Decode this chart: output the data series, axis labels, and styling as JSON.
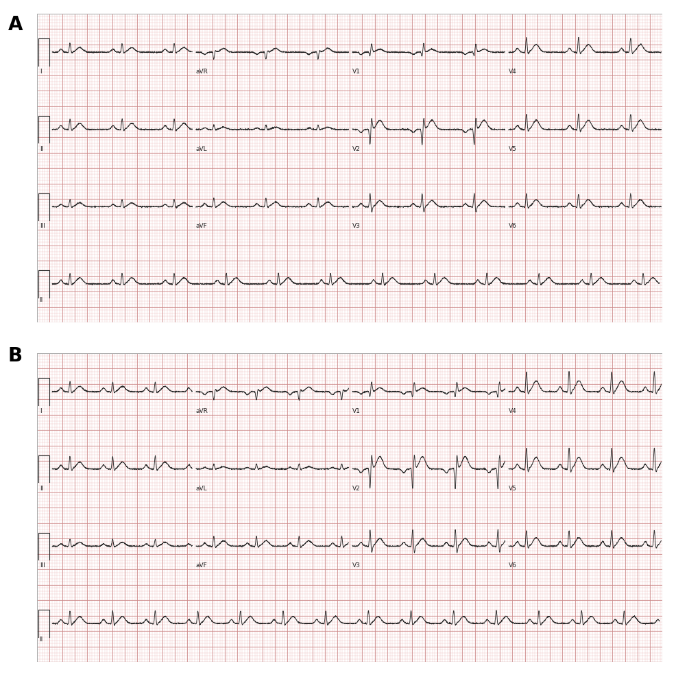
{
  "panel_A_label": "A",
  "panel_B_label": "B",
  "bg_color": "#fce8e8",
  "outer_bg": "#ffffff",
  "grid_minor_color": "#e8aaaa",
  "grid_major_color": "#cc8888",
  "ecg_color": "#2a2a2a",
  "label_color": "#222222",
  "label_fontsize": 6.5,
  "panel_A_leads": {
    "row0": [
      {
        "label": "I",
        "hr": 72,
        "amp": 0.12,
        "p_amp": 0.04,
        "t_amp": 0.06,
        "s_amp": 0.02,
        "q_amp": 0.01,
        "invert": false
      },
      {
        "label": "aVR",
        "hr": 72,
        "amp": 0.1,
        "p_amp": 0.03,
        "t_amp": -0.05,
        "s_amp": 0.03,
        "q_amp": 0.01,
        "invert": true
      },
      {
        "label": "V1",
        "hr": 72,
        "amp": 0.08,
        "p_amp": 0.03,
        "t_amp": -0.04,
        "s_amp": 0.12,
        "q_amp": 0.01,
        "invert": true
      },
      {
        "label": "V4",
        "hr": 72,
        "amp": 0.2,
        "p_amp": 0.05,
        "t_amp": 0.1,
        "s_amp": 0.04,
        "q_amp": 0.02,
        "invert": false
      }
    ],
    "row1": [
      {
        "label": "II",
        "hr": 72,
        "amp": 0.15,
        "p_amp": 0.05,
        "t_amp": 0.08,
        "s_amp": 0.03,
        "q_amp": 0.02,
        "invert": false
      },
      {
        "label": "aVL",
        "hr": 72,
        "amp": 0.06,
        "p_amp": 0.02,
        "t_amp": 0.03,
        "s_amp": 0.01,
        "q_amp": 0.01,
        "invert": false
      },
      {
        "label": "V2",
        "hr": 72,
        "amp": 0.25,
        "p_amp": 0.04,
        "t_amp": -0.12,
        "s_amp": 0.18,
        "q_amp": 0.02,
        "invert": true
      },
      {
        "label": "V5",
        "hr": 72,
        "amp": 0.22,
        "p_amp": 0.05,
        "t_amp": 0.12,
        "s_amp": 0.05,
        "q_amp": 0.02,
        "invert": false
      }
    ],
    "row2": [
      {
        "label": "III",
        "hr": 72,
        "amp": 0.1,
        "p_amp": 0.03,
        "t_amp": 0.05,
        "s_amp": 0.02,
        "q_amp": 0.01,
        "invert": false
      },
      {
        "label": "aVF",
        "hr": 72,
        "amp": 0.12,
        "p_amp": 0.04,
        "t_amp": 0.06,
        "s_amp": 0.02,
        "q_amp": 0.01,
        "invert": false
      },
      {
        "label": "V3",
        "hr": 72,
        "amp": 0.2,
        "p_amp": 0.04,
        "t_amp": 0.08,
        "s_amp": 0.1,
        "q_amp": 0.02,
        "invert": false
      },
      {
        "label": "V6",
        "hr": 72,
        "amp": 0.18,
        "p_amp": 0.05,
        "t_amp": 0.09,
        "s_amp": 0.04,
        "q_amp": 0.02,
        "invert": false
      }
    ],
    "row3": [
      {
        "label": "II",
        "hr": 72,
        "amp": 0.15,
        "p_amp": 0.05,
        "t_amp": 0.08,
        "s_amp": 0.03,
        "q_amp": 0.02,
        "invert": false
      }
    ]
  },
  "panel_B_leads": {
    "row0": [
      {
        "label": "I",
        "hr": 88,
        "amp": 0.14,
        "p_amp": 0.05,
        "t_amp": 0.07,
        "s_amp": 0.03,
        "q_amp": 0.02,
        "invert": false
      },
      {
        "label": "aVR",
        "hr": 88,
        "amp": 0.12,
        "p_amp": 0.04,
        "t_amp": -0.06,
        "s_amp": 0.04,
        "q_amp": 0.01,
        "invert": true
      },
      {
        "label": "V1",
        "hr": 88,
        "amp": 0.1,
        "p_amp": 0.03,
        "t_amp": -0.05,
        "s_amp": 0.14,
        "q_amp": 0.01,
        "invert": true
      },
      {
        "label": "V4",
        "hr": 88,
        "amp": 0.28,
        "p_amp": 0.06,
        "t_amp": 0.14,
        "s_amp": 0.06,
        "q_amp": 0.03,
        "invert": false
      }
    ],
    "row1": [
      {
        "label": "II",
        "hr": 88,
        "amp": 0.18,
        "p_amp": 0.05,
        "t_amp": 0.09,
        "s_amp": 0.04,
        "q_amp": 0.02,
        "invert": false
      },
      {
        "label": "aVL",
        "hr": 88,
        "amp": 0.07,
        "p_amp": 0.02,
        "t_amp": 0.03,
        "s_amp": 0.01,
        "q_amp": 0.01,
        "invert": false
      },
      {
        "label": "V2",
        "hr": 88,
        "amp": 0.32,
        "p_amp": 0.05,
        "t_amp": -0.16,
        "s_amp": 0.22,
        "q_amp": 0.03,
        "invert": true
      },
      {
        "label": "V5",
        "hr": 88,
        "amp": 0.3,
        "p_amp": 0.06,
        "t_amp": 0.15,
        "s_amp": 0.07,
        "q_amp": 0.03,
        "invert": false
      }
    ],
    "row2": [
      {
        "label": "III",
        "hr": 88,
        "amp": 0.1,
        "p_amp": 0.03,
        "t_amp": 0.05,
        "s_amp": 0.02,
        "q_amp": 0.01,
        "invert": false
      },
      {
        "label": "aVF",
        "hr": 88,
        "amp": 0.14,
        "p_amp": 0.04,
        "t_amp": 0.07,
        "s_amp": 0.03,
        "q_amp": 0.02,
        "invert": false
      },
      {
        "label": "V3",
        "hr": 88,
        "amp": 0.25,
        "p_amp": 0.05,
        "t_amp": 0.1,
        "s_amp": 0.12,
        "q_amp": 0.02,
        "invert": false
      },
      {
        "label": "V6",
        "hr": 88,
        "amp": 0.22,
        "p_amp": 0.06,
        "t_amp": 0.11,
        "s_amp": 0.05,
        "q_amp": 0.02,
        "invert": false
      }
    ],
    "row3": [
      {
        "label": "II",
        "hr": 88,
        "amp": 0.18,
        "p_amp": 0.05,
        "t_amp": 0.09,
        "s_amp": 0.04,
        "q_amp": 0.02,
        "invert": false
      }
    ]
  }
}
